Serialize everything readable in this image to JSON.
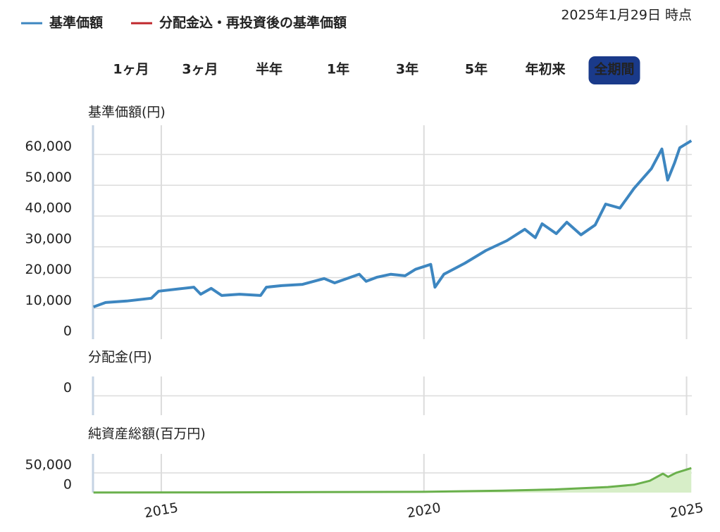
{
  "legend": [
    {
      "name": "基準価額",
      "color": "#3d86c0"
    },
    {
      "name": "分配金込・再投資後の基準価額",
      "color": "#c0282d"
    }
  ],
  "as_of": "2025年1月29日 時点",
  "periods": [
    "1ヶ月",
    "3ヶ月",
    "半年",
    "1年",
    "3年",
    "5年",
    "年初来",
    "全期間"
  ],
  "active_period": 7,
  "chart_data": [
    {
      "type": "line",
      "y_label": "基準価額(円)",
      "xlim": [
        2013.7,
        2025.1
      ],
      "xticks": [
        2015,
        2020,
        2025
      ],
      "ylim": [
        0,
        69500
      ],
      "yticks": [
        0,
        {
          "value": 10000,
          "label": "10,000"
        },
        {
          "value": 20000,
          "label": "20,000"
        },
        {
          "value": 30000,
          "label": "30,000"
        },
        {
          "value": 40000,
          "label": "40,000"
        },
        {
          "value": 50000,
          "label": "50,000"
        },
        {
          "value": 60000,
          "label": "60,000"
        }
      ],
      "grid": true,
      "series": [
        {
          "color": "#3d86c0",
          "x": [
            2013.71,
            2013.94,
            2014.34,
            2014.81,
            2014.95,
            2015.42,
            2015.62,
            2015.75,
            2015.95,
            2016.15,
            2016.49,
            2016.89,
            2017.0,
            2017.29,
            2017.69,
            2018.1,
            2018.3,
            2018.77,
            2018.9,
            2019.1,
            2019.37,
            2019.64,
            2019.84,
            2020.13,
            2020.21,
            2020.38,
            2020.78,
            2021.18,
            2021.58,
            2021.92,
            2022.12,
            2022.25,
            2022.52,
            2022.72,
            2022.99,
            2023.26,
            2023.46,
            2023.73,
            2024.0,
            2024.33,
            2024.53,
            2024.64,
            2024.77,
            2024.87,
            2025.09
          ],
          "values": [
            10500,
            11900,
            12400,
            13300,
            15600,
            16500,
            16900,
            14600,
            16500,
            14200,
            14600,
            14200,
            16900,
            17400,
            17800,
            19700,
            18300,
            21100,
            18800,
            20100,
            21100,
            20600,
            22700,
            24300,
            16900,
            21100,
            24700,
            28800,
            32000,
            35700,
            33000,
            37500,
            34300,
            38000,
            33900,
            37100,
            43900,
            42600,
            49000,
            55400,
            61800,
            51700,
            57200,
            62200,
            64500
          ]
        }
      ]
    },
    {
      "type": "line",
      "y_label": "分配金(円)",
      "xlim": [
        2013.7,
        2025.1
      ],
      "xticks": [
        2015,
        2020,
        2025
      ],
      "ylim": [
        -1,
        1
      ],
      "yticks": [
        0
      ],
      "grid": true,
      "series": []
    },
    {
      "type": "area",
      "y_label": "純資産総額(百万円)",
      "xlim": [
        2013.7,
        2025.1
      ],
      "xticks": [
        2015,
        2020,
        2025
      ],
      "ylim": [
        0,
        98000
      ],
      "yticks": [
        0,
        {
          "value": 50000,
          "label": "50,000"
        }
      ],
      "grid": true,
      "series": [
        {
          "color": "#6ab04c",
          "x": [
            2013.71,
            2016.0,
            2018.0,
            2020.0,
            2021.5,
            2022.5,
            2023.5,
            2024.0,
            2024.3,
            2024.55,
            2024.65,
            2024.8,
            2025.09
          ],
          "values": [
            200,
            600,
            1200,
            2000,
            5000,
            8000,
            14000,
            20000,
            30000,
            48000,
            40000,
            50000,
            62000
          ]
        }
      ]
    }
  ]
}
